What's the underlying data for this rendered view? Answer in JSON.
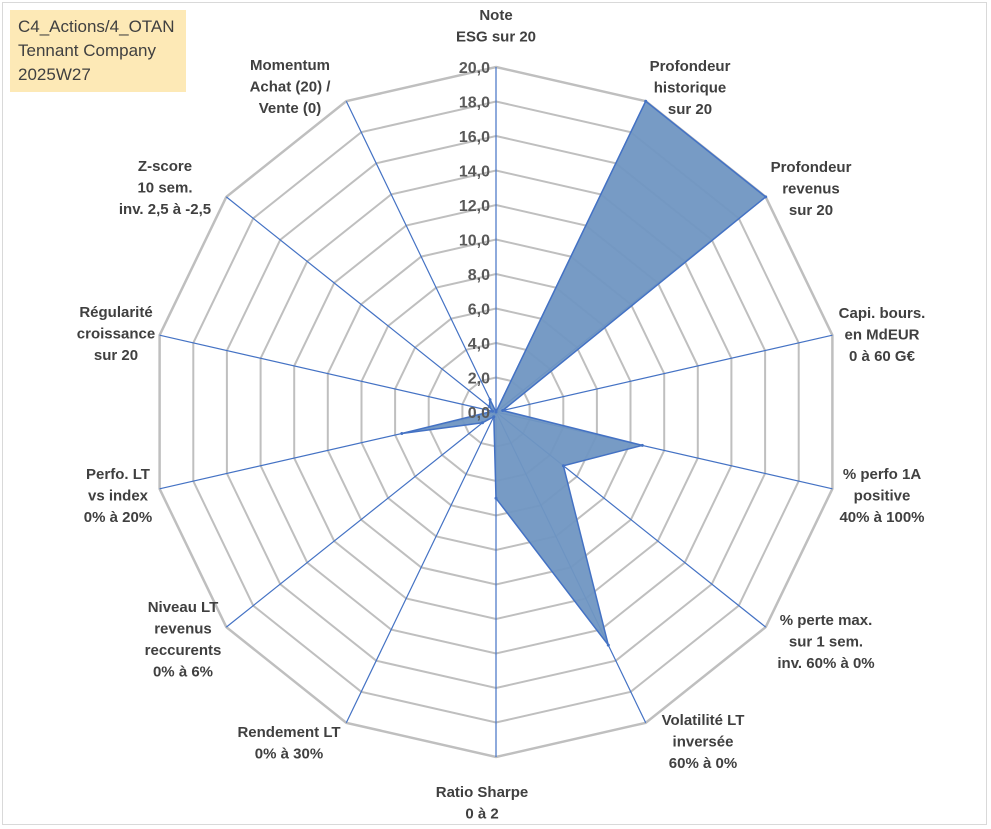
{
  "title_box": {
    "line1": "C4_Actions/4_OTAN",
    "line2": "Tennant Company",
    "line3": "2025W27"
  },
  "chart_data": {
    "type": "radar",
    "title": "",
    "rlim": [
      0,
      20
    ],
    "tick_values": [
      0,
      2,
      4,
      6,
      8,
      10,
      12,
      14,
      16,
      18,
      20
    ],
    "tick_labels": [
      "0,0",
      "2,0",
      "4,0",
      "6,0",
      "8,0",
      "10,0",
      "12,0",
      "14,0",
      "16,0",
      "18,0",
      "20,0"
    ],
    "categories": [
      [
        "Note",
        "ESG sur 20"
      ],
      [
        "Profondeur",
        "historique",
        "sur 20"
      ],
      [
        "Profondeur",
        "revenus",
        "sur 20"
      ],
      [
        "Capi. bours.",
        "en MdEUR",
        "0 à 60 G€"
      ],
      [
        "% perfo 1A",
        "positive",
        "40% à 100%"
      ],
      [
        "% perte max.",
        "sur 1 sem.",
        "inv. 60% à 0%"
      ],
      [
        "Volatilité LT",
        "inversée",
        "60% à 0%"
      ],
      [
        "Ratio Sharpe",
        "0 à 2"
      ],
      [
        "Rendement LT",
        "0% à 30%"
      ],
      [
        "Niveau LT",
        "revenus",
        "reccurents",
        "0% à 6%"
      ],
      [
        "Perfo. LT",
        "vs index",
        "0% à 20%"
      ],
      [
        "Régularité",
        "croissance",
        "sur 20"
      ],
      [
        "Z-score",
        "10 sem.",
        "inv. 2,5 à -2,5"
      ],
      [
        "Momentum",
        "Achat (20) /",
        "Vente (0)"
      ]
    ],
    "series": [
      {
        "values": [
          0,
          20,
          20,
          0.4,
          8.7,
          5.0,
          15.0,
          5.0,
          0.3,
          1.0,
          5.6,
          0.2,
          0.5,
          0.8
        ],
        "fill": "#7096c2",
        "stroke": "#4472c4"
      }
    ],
    "grid": true,
    "colors": {
      "grid": "#bfbfbf",
      "spoke": "#4472c4",
      "fill": "#7096c2"
    }
  }
}
